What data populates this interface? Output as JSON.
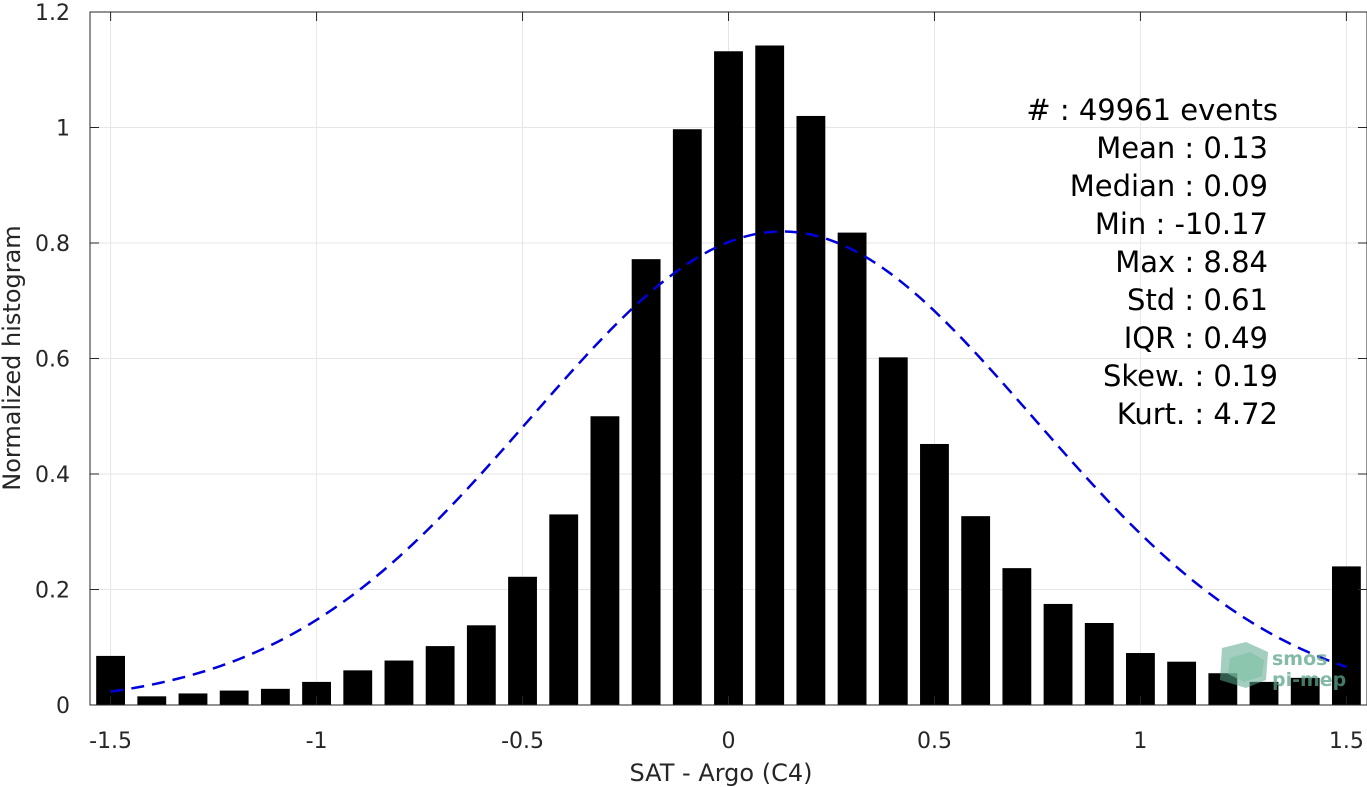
{
  "chart_data": {
    "type": "bar",
    "xlabel": "SAT - Argo (C4)",
    "ylabel": "Normalized histogram",
    "xlim": [
      -1.55,
      1.55
    ],
    "ylim": [
      0,
      1.2
    ],
    "xticks": [
      -1.5,
      -1,
      -0.5,
      0,
      0.5,
      1,
      1.5
    ],
    "xtick_labels": [
      "-1.5",
      "-1",
      "-0.5",
      "0",
      "0.5",
      "1",
      "1.5"
    ],
    "yticks": [
      0,
      0.2,
      0.4,
      0.6,
      0.8,
      1,
      1.2
    ],
    "ytick_labels": [
      "0",
      "0.2",
      "0.4",
      "0.6",
      "0.8",
      "1",
      "1.2"
    ],
    "grid": true,
    "bar_color": "#000000",
    "bar_width": 0.07,
    "x": [
      -1.5,
      -1.4,
      -1.3,
      -1.2,
      -1.1,
      -1.0,
      -0.9,
      -0.8,
      -0.7,
      -0.6,
      -0.5,
      -0.4,
      -0.3,
      -0.2,
      -0.1,
      0.0,
      0.1,
      0.2,
      0.3,
      0.4,
      0.5,
      0.6,
      0.7,
      0.8,
      0.9,
      1.0,
      1.1,
      1.2,
      1.3,
      1.4,
      1.5
    ],
    "values": [
      0.085,
      0.015,
      0.02,
      0.025,
      0.028,
      0.04,
      0.06,
      0.077,
      0.102,
      0.138,
      0.222,
      0.33,
      0.5,
      0.772,
      0.997,
      1.132,
      1.142,
      1.02,
      0.818,
      0.602,
      0.452,
      0.327,
      0.237,
      0.175,
      0.142,
      0.09,
      0.075,
      0.055,
      0.04,
      0.047,
      0.24
    ],
    "fit_curve": {
      "type": "gaussian",
      "mean": 0.13,
      "std": 0.61,
      "peak": 0.82,
      "x_range": [
        -1.5,
        1.5
      ],
      "color": "#0000dd",
      "style": "dashed"
    },
    "stats_lines": [
      "#  : 49961 events",
      "Mean : 0.13",
      "Median : 0.09",
      "Min : -10.17",
      "Max : 8.84",
      "Std : 0.61",
      "IQR : 0.49",
      "Skew. : 0.19",
      "Kurt. : 4.72"
    ],
    "watermark": [
      "smos",
      "pi-mep"
    ]
  }
}
